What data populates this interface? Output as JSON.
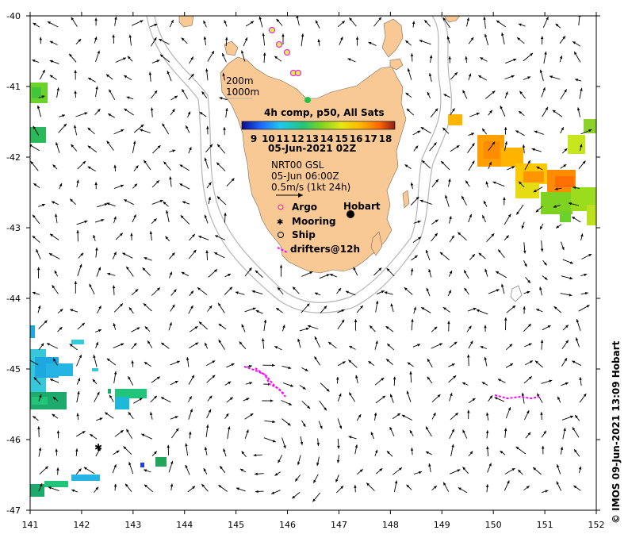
{
  "map": {
    "lat_ticks": [
      "-40",
      "-41",
      "-42",
      "-43",
      "-44",
      "-45",
      "-46",
      "-47"
    ],
    "lon_ticks": [
      "141",
      "142",
      "143",
      "144",
      "145",
      "146",
      "147",
      "148",
      "149",
      "150",
      "151",
      "152"
    ],
    "isobath_labels": [
      "200m",
      "1000m"
    ],
    "colorbar": {
      "title": "4h comp, p50, All Sats",
      "ticks": [
        "9",
        "10",
        "11",
        "12",
        "13",
        "14",
        "15",
        "16",
        "17",
        "18"
      ],
      "date": "05-Jun-2021 02Z"
    },
    "current_info": {
      "product": "NRT00 GSL",
      "time": "05-Jun 06:00Z",
      "scale": "0.5m/s (1kt 24h)"
    },
    "legend": {
      "argo": "Argo",
      "mooring": "Mooring",
      "ship": "Ship",
      "drifters": "drifters@12h"
    },
    "city": "Hobart",
    "credit": "© IMOS 09-Jun-2021 13:09 Hobart",
    "colors": {
      "land": "#f9c995",
      "argo": "#ff00ff",
      "drifter": "#ff00ff",
      "isobath": "#b4b4b4"
    }
  }
}
